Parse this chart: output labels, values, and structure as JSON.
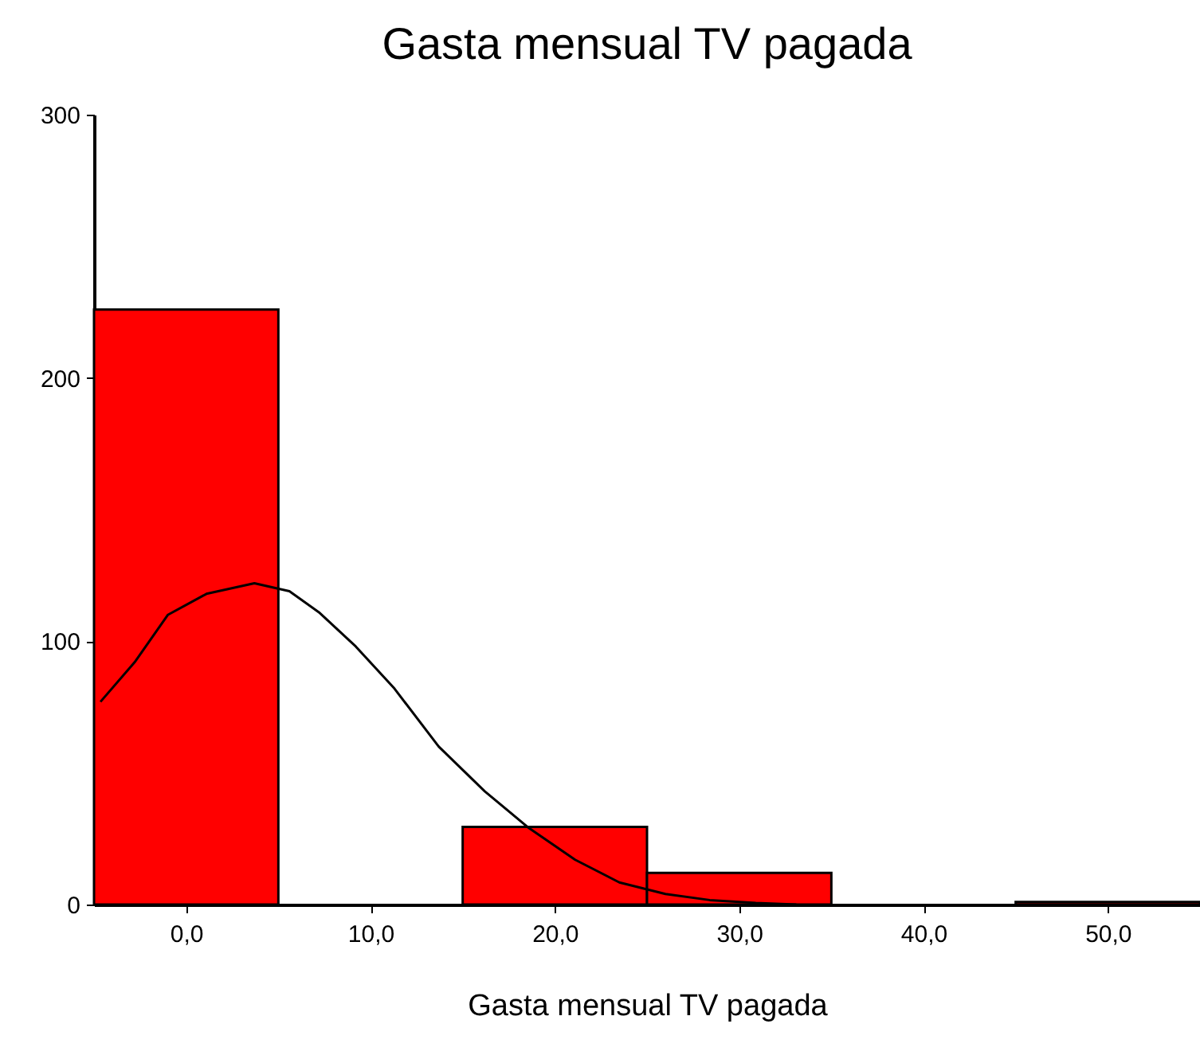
{
  "chart_data": {
    "type": "histogram",
    "title": "Gasta mensual TV pagada",
    "xlabel": "Gasta mensual TV pagada",
    "bins": [
      -5,
      5,
      15,
      25,
      35,
      45,
      55
    ],
    "series": [
      {
        "type": "histogram",
        "color": "#ff0000",
        "values": [
          226,
          0,
          29.5,
          12,
          0,
          1
        ]
      },
      {
        "type": "line",
        "color": "#000000",
        "x": [
          -4.65,
          -2.8,
          -1,
          1.1,
          3.7,
          5.6,
          7.2,
          9.2,
          11.3,
          13.7,
          16.2,
          18.6,
          21.1,
          23.5,
          26,
          28.4,
          30.9,
          33.1
        ],
        "values": [
          77,
          92,
          110,
          118,
          122,
          119,
          111,
          98,
          82,
          60,
          43,
          29,
          17,
          8.4,
          4,
          1.7,
          0.6,
          0
        ]
      }
    ],
    "xlim": [
      -5,
      55
    ],
    "ylim": [
      0,
      300
    ],
    "xticks": [
      {
        "value": 0,
        "label": "0,0"
      },
      {
        "value": 10,
        "label": "10,0"
      },
      {
        "value": 20,
        "label": "20,0"
      },
      {
        "value": 30,
        "label": "30,0"
      },
      {
        "value": 40,
        "label": "40,0"
      },
      {
        "value": 50,
        "label": "50,0"
      }
    ],
    "yticks": [
      0,
      100,
      200,
      300
    ],
    "grid": false
  }
}
